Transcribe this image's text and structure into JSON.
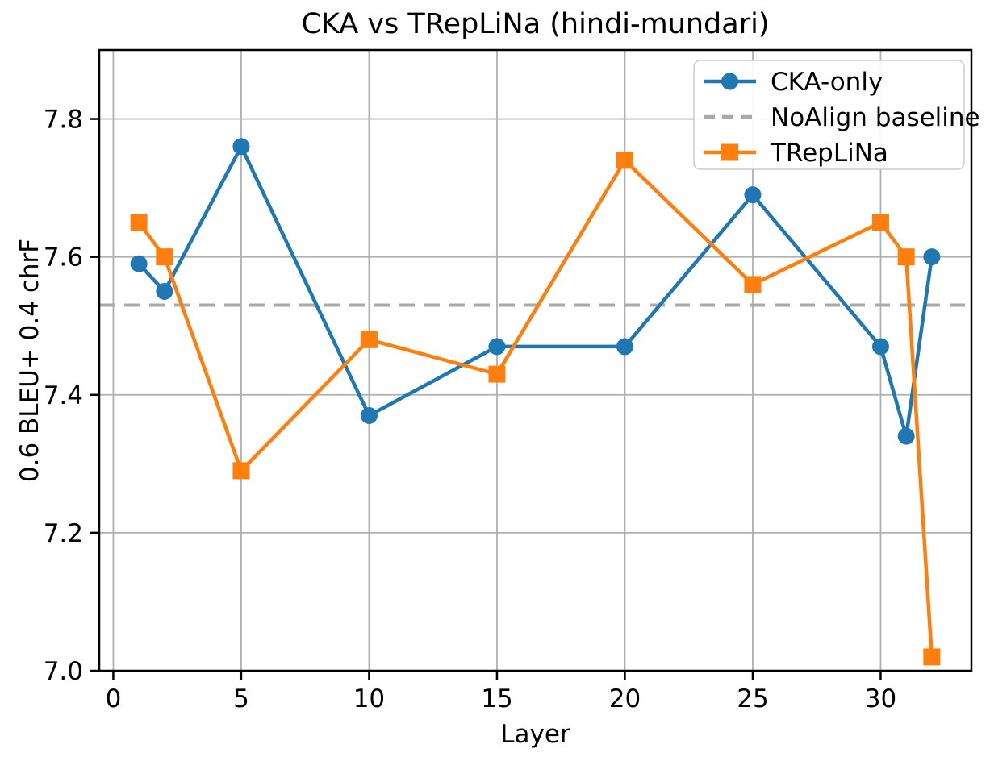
{
  "chart_data": {
    "type": "line",
    "title": "CKA vs TRepLiNa (hindi-mundari)",
    "xlabel": "Layer",
    "ylabel": "0.6 BLEU+ 0.4 chrF",
    "x": [
      1,
      2,
      5,
      10,
      15,
      20,
      25,
      30,
      31,
      32
    ],
    "series": [
      {
        "name": "CKA-only",
        "color": "#1f77b4",
        "marker": "circle",
        "values": [
          7.59,
          7.55,
          7.76,
          7.37,
          7.47,
          7.47,
          7.69,
          7.47,
          7.34,
          7.6
        ]
      },
      {
        "name": "TRepLiNa",
        "color": "#ff7f0e",
        "marker": "square",
        "values": [
          7.65,
          7.6,
          7.29,
          7.48,
          7.43,
          7.74,
          7.56,
          7.65,
          7.6,
          7.02
        ]
      }
    ],
    "baseline": {
      "name": "NoAlign baseline",
      "value": 7.53,
      "color": "#aaaaaa",
      "style": "dashed"
    },
    "xlim": [
      -0.55,
      33.55
    ],
    "ylim": [
      7.0,
      7.9
    ],
    "xticks": [
      0,
      5,
      10,
      15,
      20,
      25,
      30
    ],
    "yticks": [
      7.0,
      7.2,
      7.4,
      7.6,
      7.8
    ],
    "grid": true,
    "grid_color": "#b0b0b0",
    "axis_color": "#000000",
    "legend": {
      "position": "upper right",
      "entries": [
        {
          "label": "CKA-only",
          "type": "line-marker",
          "marker": "circle",
          "color": "#1f77b4"
        },
        {
          "label": "NoAlign baseline",
          "type": "dashed-line",
          "color": "#aaaaaa"
        },
        {
          "label": "TRepLiNa",
          "type": "line-marker",
          "marker": "square",
          "color": "#ff7f0e"
        }
      ]
    }
  }
}
